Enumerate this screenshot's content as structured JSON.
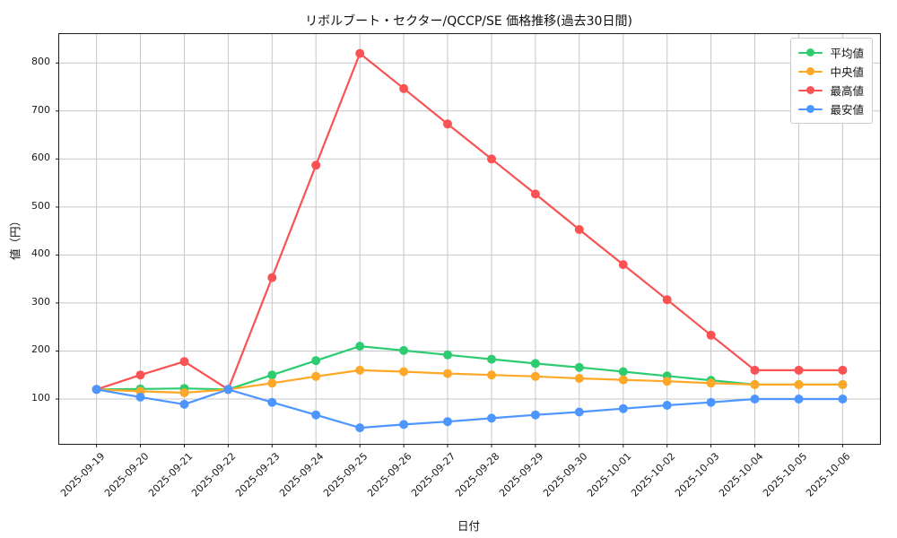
{
  "chart_data": {
    "type": "line",
    "title": "リボルブート・セクター/QCCP/SE 価格推移(過去30日間)",
    "xlabel": "日付",
    "ylabel": "値（円）",
    "x": [
      "2025-09-19",
      "2025-09-20",
      "2025-09-21",
      "2025-09-22",
      "2025-09-23",
      "2025-09-24",
      "2025-09-25",
      "2025-09-26",
      "2025-09-27",
      "2025-09-28",
      "2025-09-29",
      "2025-09-30",
      "2025-10-01",
      "2025-10-02",
      "2025-10-03",
      "2025-10-04",
      "2025-10-05",
      "2025-10-06"
    ],
    "series": [
      {
        "name": "平均値",
        "color": "#2ecc71",
        "values": [
          120,
          121,
          122,
          120,
          150,
          180,
          210,
          201,
          192,
          183,
          174,
          166,
          157,
          148,
          139,
          130,
          130,
          130
        ]
      },
      {
        "name": "中央値",
        "color": "#ffa726",
        "values": [
          120,
          116,
          113,
          120,
          133,
          147,
          160,
          157,
          153,
          150,
          147,
          143,
          140,
          137,
          133,
          130,
          130,
          130
        ]
      },
      {
        "name": "最高値",
        "color": "#fa5252",
        "values": [
          120,
          150,
          178,
          120,
          353,
          587,
          820,
          747,
          673,
          600,
          527,
          453,
          380,
          307,
          233,
          160,
          160,
          160
        ]
      },
      {
        "name": "最安値",
        "color": "#4d96ff",
        "values": [
          120,
          104,
          89,
          120,
          93,
          67,
          40,
          47,
          53,
          60,
          67,
          73,
          80,
          87,
          93,
          100,
          100,
          100
        ]
      }
    ],
    "yticks": [
      100,
      200,
      300,
      400,
      500,
      600,
      700,
      800
    ],
    "ylim": [
      6.6,
      860.3
    ],
    "xlim": [
      -0.85,
      17.85
    ],
    "grid": true,
    "legend_position": "top-right",
    "marker": "circle",
    "line_width": 2.2,
    "marker_radius": 5
  }
}
